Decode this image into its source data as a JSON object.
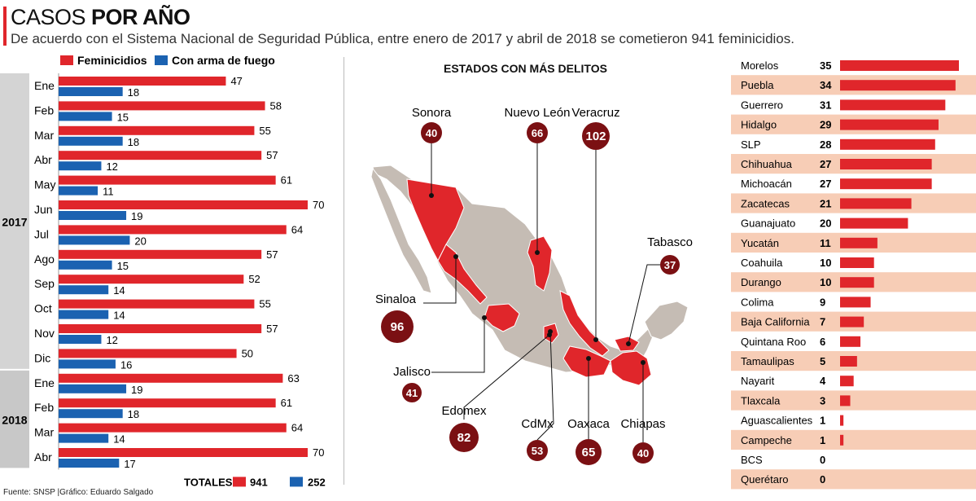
{
  "header": {
    "title_light": "CASOS",
    "title_bold": "POR AÑO",
    "subtitle": "De acuerdo con el Sistema Nacional de Seguridad Pública, entre enero de 2017 y abril de 2018 se cometieron 941 feminicidios."
  },
  "colors": {
    "accent": "#e0262b",
    "blue": "#1b62b1",
    "dark_red": "#7b1013",
    "map_gray": "#c5bcb4",
    "stripe": "#f7cdb6",
    "year_bg": "#d9d9d9"
  },
  "chart_data": [
    {
      "type": "bar",
      "orientation": "horizontal",
      "legend": [
        "Feminicidios",
        "Con arma de fuego"
      ],
      "years": [
        {
          "label": "2017",
          "months": 12
        },
        {
          "label": "2018",
          "months": 4
        }
      ],
      "categories": [
        "Ene",
        "Feb",
        "Mar",
        "Abr",
        "May",
        "Jun",
        "Jul",
        "Ago",
        "Sep",
        "Oct",
        "Nov",
        "Dic",
        "Ene",
        "Feb",
        "Mar",
        "Abr"
      ],
      "series": [
        {
          "name": "Feminicidios",
          "color": "#e0262b",
          "values": [
            47,
            58,
            55,
            57,
            61,
            70,
            64,
            57,
            52,
            55,
            57,
            50,
            63,
            61,
            64,
            70
          ]
        },
        {
          "name": "Con arma de fuego",
          "color": "#1b62b1",
          "values": [
            18,
            15,
            18,
            12,
            11,
            19,
            20,
            15,
            14,
            14,
            12,
            16,
            19,
            18,
            14,
            17
          ]
        }
      ],
      "totals": {
        "label": "TOTALES",
        "feminicidios": "941",
        "con_arma": "252"
      }
    },
    {
      "type": "bar",
      "orientation": "horizontal",
      "categories": [
        "Morelos",
        "Puebla",
        "Guerrero",
        "Hidalgo",
        "SLP",
        "Chihuahua",
        "Michoacán",
        "Zacatecas",
        "Guanajuato",
        "Yucatán",
        "Coahuila",
        "Durango",
        "Colima",
        "Baja California",
        "Quintana Roo",
        "Tamaulipas",
        "Nayarit",
        "Tlaxcala",
        "Aguascalientes",
        "Campeche",
        "BCS",
        "Querétaro"
      ],
      "values": [
        35,
        34,
        31,
        29,
        28,
        27,
        27,
        21,
        20,
        11,
        10,
        10,
        9,
        7,
        6,
        5,
        4,
        3,
        1,
        1,
        0,
        0
      ]
    }
  ],
  "map": {
    "title": "ESTADOS CON MÁS DELITOS",
    "callouts": [
      {
        "name": "Sonora",
        "value": "40"
      },
      {
        "name": "Nuevo León",
        "value": "66"
      },
      {
        "name": "Veracruz",
        "value": "102"
      },
      {
        "name": "Tabasco",
        "value": "37"
      },
      {
        "name": "Sinaloa",
        "value": "96"
      },
      {
        "name": "Jalisco",
        "value": "41"
      },
      {
        "name": "Edomex",
        "value": "82"
      },
      {
        "name": "CdMx",
        "value": "53"
      },
      {
        "name": "Oaxaca",
        "value": "65"
      },
      {
        "name": "Chiapas",
        "value": "40"
      }
    ]
  },
  "footer": {
    "source": "Fuente: SNSP |Gráfico: Eduardo Salgado"
  }
}
